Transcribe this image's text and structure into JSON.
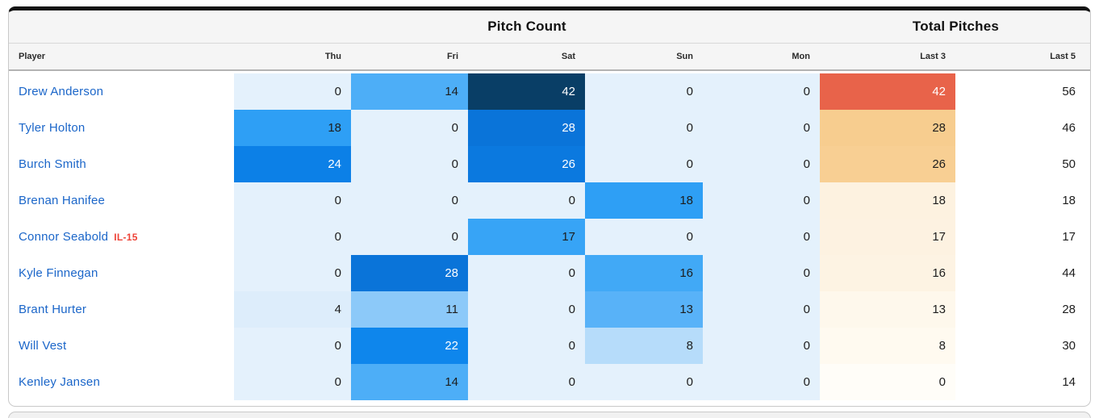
{
  "table": {
    "group_headers": {
      "pitch_count": "Pitch Count",
      "total_pitches": "Total Pitches"
    },
    "columns": [
      "Player",
      "Thu",
      "Fri",
      "Sat",
      "Sun",
      "Mon",
      "Last 3",
      "Last 5"
    ],
    "colors": {
      "player_link": "#1b66c9",
      "injury_badge": "#ee4237",
      "zero_cell": "#e4f1fc",
      "max_day_cell": "#093e66",
      "last3_hot": "#e8634a",
      "header_bg": "#f5f5f5",
      "card_top_border": "#141414"
    },
    "rows": [
      {
        "player": "Drew Anderson",
        "status": "",
        "cells": [
          {
            "v": "0",
            "bg": "#e4f1fc"
          },
          {
            "v": "14",
            "bg": "#4daef7"
          },
          {
            "v": "42",
            "bg": "#093e66",
            "fg": "#ffffff"
          },
          {
            "v": "0",
            "bg": "#e4f1fc"
          },
          {
            "v": "0",
            "bg": "#e4f1fc"
          },
          {
            "v": "42",
            "bg": "#e8634a",
            "fg": "#ffffff"
          }
        ],
        "last5": "56"
      },
      {
        "player": "Tyler Holton",
        "status": "",
        "cells": [
          {
            "v": "18",
            "bg": "#2e9ff5"
          },
          {
            "v": "0",
            "bg": "#e4f1fc"
          },
          {
            "v": "28",
            "bg": "#0a74d9",
            "fg": "#ffffff"
          },
          {
            "v": "0",
            "bg": "#e4f1fc"
          },
          {
            "v": "0",
            "bg": "#e4f1fc"
          },
          {
            "v": "28",
            "bg": "#f7cd8f"
          }
        ],
        "last5": "46"
      },
      {
        "player": "Burch Smith",
        "status": "",
        "cells": [
          {
            "v": "24",
            "bg": "#0c80e7",
            "fg": "#ffffff"
          },
          {
            "v": "0",
            "bg": "#e4f1fc"
          },
          {
            "v": "26",
            "bg": "#0b79df",
            "fg": "#ffffff"
          },
          {
            "v": "0",
            "bg": "#e4f1fc"
          },
          {
            "v": "0",
            "bg": "#e4f1fc"
          },
          {
            "v": "26",
            "bg": "#f8cf93"
          }
        ],
        "last5": "50"
      },
      {
        "player": "Brenan Hanifee",
        "status": "",
        "cells": [
          {
            "v": "0",
            "bg": "#e4f1fc"
          },
          {
            "v": "0",
            "bg": "#e4f1fc"
          },
          {
            "v": "0",
            "bg": "#e4f1fc"
          },
          {
            "v": "18",
            "bg": "#2e9ff5"
          },
          {
            "v": "0",
            "bg": "#e4f1fc"
          },
          {
            "v": "18",
            "bg": "#fdf2e0"
          }
        ],
        "last5": "18"
      },
      {
        "player": "Connor Seabold",
        "status": "IL-15",
        "cells": [
          {
            "v": "0",
            "bg": "#e4f1fc"
          },
          {
            "v": "0",
            "bg": "#e4f1fc"
          },
          {
            "v": "17",
            "bg": "#37a4f6"
          },
          {
            "v": "0",
            "bg": "#e4f1fc"
          },
          {
            "v": "0",
            "bg": "#e4f1fc"
          },
          {
            "v": "17",
            "bg": "#fdf2e1"
          }
        ],
        "last5": "17"
      },
      {
        "player": "Kyle Finnegan",
        "status": "",
        "cells": [
          {
            "v": "0",
            "bg": "#e4f1fc"
          },
          {
            "v": "28",
            "bg": "#0a74d9",
            "fg": "#ffffff"
          },
          {
            "v": "0",
            "bg": "#e4f1fc"
          },
          {
            "v": "16",
            "bg": "#41a9f6"
          },
          {
            "v": "0",
            "bg": "#e4f1fc"
          },
          {
            "v": "16",
            "bg": "#fdf3e3"
          }
        ],
        "last5": "44"
      },
      {
        "player": "Brant Hurter",
        "status": "",
        "cells": [
          {
            "v": "4",
            "bg": "#ddedfb"
          },
          {
            "v": "11",
            "bg": "#8cc9f9"
          },
          {
            "v": "0",
            "bg": "#e4f1fc"
          },
          {
            "v": "13",
            "bg": "#58b2f8"
          },
          {
            "v": "0",
            "bg": "#e4f1fc"
          },
          {
            "v": "13",
            "bg": "#fef8ec"
          }
        ],
        "last5": "28"
      },
      {
        "player": "Will Vest",
        "status": "",
        "cells": [
          {
            "v": "0",
            "bg": "#e4f1fc"
          },
          {
            "v": "22",
            "bg": "#0e86ec",
            "fg": "#ffffff"
          },
          {
            "v": "0",
            "bg": "#e4f1fc"
          },
          {
            "v": "8",
            "bg": "#b6dcfa"
          },
          {
            "v": "0",
            "bg": "#e4f1fc"
          },
          {
            "v": "8",
            "bg": "#fffaf0"
          }
        ],
        "last5": "30"
      },
      {
        "player": "Kenley Jansen",
        "status": "",
        "cells": [
          {
            "v": "0",
            "bg": "#e4f1fc"
          },
          {
            "v": "14",
            "bg": "#4daef7"
          },
          {
            "v": "0",
            "bg": "#e4f1fc"
          },
          {
            "v": "0",
            "bg": "#e4f1fc"
          },
          {
            "v": "0",
            "bg": "#e4f1fc"
          },
          {
            "v": "0",
            "bg": "#fffdf8"
          }
        ],
        "last5": "14"
      }
    ]
  }
}
